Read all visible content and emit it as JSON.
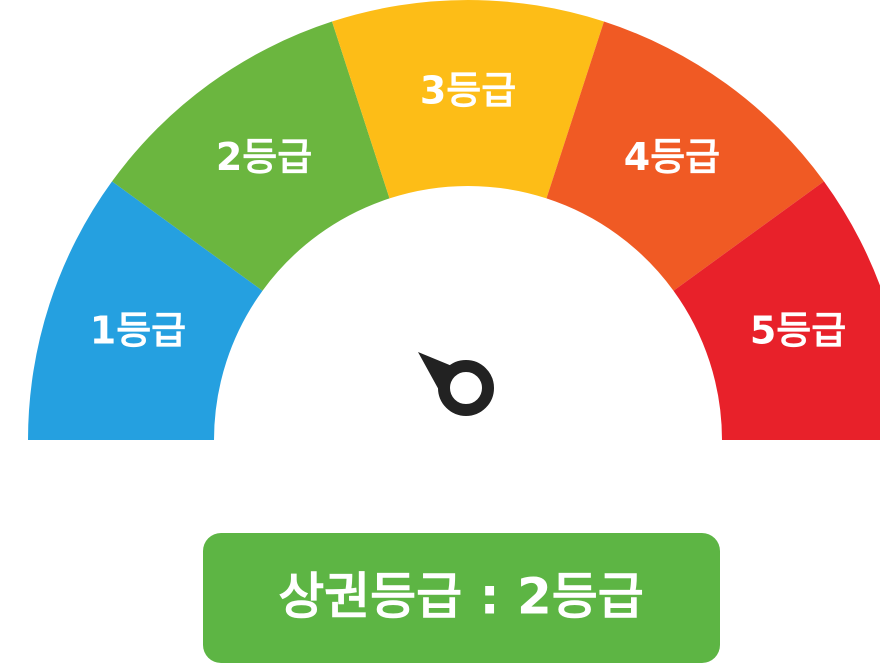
{
  "gauge": {
    "segments": [
      {
        "label": "1등급",
        "color": "#25a0e0"
      },
      {
        "label": "2등급",
        "color": "#6bb63f"
      },
      {
        "label": "3등급",
        "color": "#fdbd17"
      },
      {
        "label": "4등급",
        "color": "#f05a24"
      },
      {
        "label": "5등급",
        "color": "#e8212a"
      }
    ],
    "result": {
      "label": "상권등급 : 2등급",
      "color": "#5db544"
    }
  }
}
